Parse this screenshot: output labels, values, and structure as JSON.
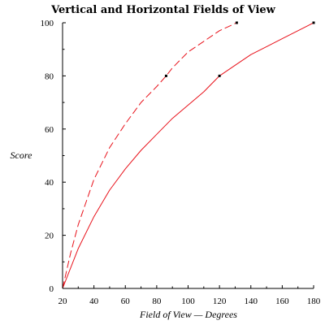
{
  "chart_data": {
    "type": "line",
    "title": "Vertical and Horizontal Fields of View",
    "xlabel": "Field of View — Degrees",
    "ylabel": "Score",
    "xlim": [
      20,
      180
    ],
    "ylim": [
      0,
      100
    ],
    "x_ticks": [
      20,
      40,
      60,
      80,
      100,
      120,
      140,
      160,
      180
    ],
    "y_ticks": [
      0,
      20,
      40,
      60,
      80,
      100
    ],
    "grid": false,
    "colors": {
      "series": "#e8111a",
      "markers": "#000000",
      "axes": "#000000"
    },
    "series": [
      {
        "line_style": "dashed",
        "x": [
          20,
          25,
          30,
          40,
          50,
          60,
          70,
          80,
          86,
          90,
          100,
          110,
          120,
          131
        ],
        "y": [
          0,
          13,
          24,
          41,
          53,
          62,
          70,
          76,
          80,
          83,
          89,
          93,
          97,
          100
        ],
        "markers": [
          {
            "x": 86,
            "y": 80
          },
          {
            "x": 131,
            "y": 100
          }
        ]
      },
      {
        "line_style": "solid",
        "x": [
          20,
          30,
          40,
          50,
          60,
          70,
          80,
          90,
          100,
          110,
          120,
          130,
          140,
          150,
          160,
          170,
          180
        ],
        "y": [
          0,
          15,
          27,
          37,
          45,
          52,
          58,
          64,
          69,
          74,
          80,
          84,
          88,
          91,
          94,
          97,
          100
        ],
        "markers": [
          {
            "x": 120,
            "y": 80
          },
          {
            "x": 180,
            "y": 100
          }
        ]
      }
    ]
  }
}
